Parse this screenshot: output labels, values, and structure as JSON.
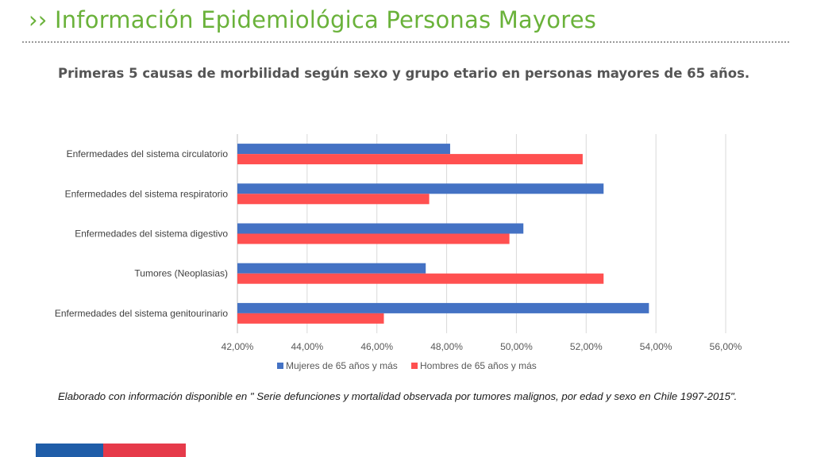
{
  "header": {
    "title": "›› Información Epidemiológica Personas Mayores"
  },
  "chart_heading": "Primeras 5 causas de morbilidad según sexo y grupo etario en personas mayores de 65 años.",
  "source_note": "Elaborado con información disponible en \" Serie defunciones y mortalidad observada por tumores malignos, por edad y sexo en Chile 1997-2015\".",
  "colors": {
    "title_green": "#6ab23a",
    "series_women": "#4472c4",
    "series_men": "#ff5050",
    "footer_blue": "#1f5da8",
    "footer_red": "#e63a4a"
  },
  "chart_data": {
    "type": "bar",
    "orientation": "horizontal",
    "title": "",
    "xlabel": "",
    "ylabel": "",
    "categories": [
      "Enfermedades del sistema circulatorio",
      "Enfermedades del sistema respiratorio",
      "Enfermedades del sistema digestivo",
      "Tumores (Neoplasias)",
      "Enfermedades del sistema genitourinario"
    ],
    "series": [
      {
        "name": "Mujeres de 65 años y más",
        "color": "#4472c4",
        "values": [
          48.1,
          52.5,
          50.2,
          47.4,
          53.8
        ]
      },
      {
        "name": "Hombres de 65 años y más",
        "color": "#ff5050",
        "values": [
          51.9,
          47.5,
          49.8,
          52.5,
          46.2
        ]
      }
    ],
    "xlim": [
      42,
      56
    ],
    "x_ticks": [
      42,
      44,
      46,
      48,
      50,
      52,
      54,
      56
    ],
    "x_tick_labels": [
      "42,00%",
      "44,00%",
      "46,00%",
      "48,00%",
      "50,00%",
      "52,00%",
      "54,00%",
      "56,00%"
    ],
    "grid": "vertical",
    "legend": "bottom"
  }
}
